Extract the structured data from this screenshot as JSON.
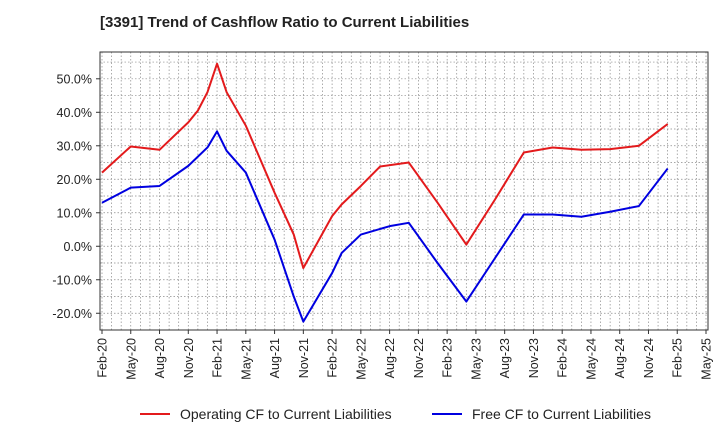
{
  "chart_data": {
    "type": "line",
    "title": "[3391]  Trend of Cashflow Ratio to Current Liabilities",
    "xlabel": "",
    "ylabel": "",
    "ylim": [
      -25,
      58
    ],
    "yticks": [
      "50.0%",
      "40.0%",
      "30.0%",
      "20.0%",
      "10.0%",
      "0.0%",
      "-10.0%",
      "-20.0%"
    ],
    "ytick_values": [
      50,
      40,
      30,
      20,
      10,
      0,
      -10,
      -20
    ],
    "xticks": [
      "Feb-20",
      "May-20",
      "Aug-20",
      "Nov-20",
      "Feb-21",
      "May-21",
      "Aug-21",
      "Nov-21",
      "Feb-22",
      "May-22",
      "Aug-22",
      "Nov-22",
      "Feb-23",
      "May-23",
      "Aug-23",
      "Nov-23",
      "Feb-24",
      "May-24",
      "Aug-24",
      "Nov-24",
      "Feb-25",
      "May-25"
    ],
    "grid": true,
    "legend_position": "bottom",
    "series": [
      {
        "name": "Operating CF to Current Liabilities",
        "color": "#e31a1c",
        "points": [
          [
            0,
            22
          ],
          [
            3,
            29.8
          ],
          [
            6,
            28.8
          ],
          [
            9,
            37
          ],
          [
            10,
            40.5
          ],
          [
            11,
            46
          ],
          [
            12,
            54.5
          ],
          [
            13,
            46
          ],
          [
            15,
            36
          ],
          [
            18,
            16
          ],
          [
            20,
            3.5
          ],
          [
            21,
            -6.5
          ],
          [
            24,
            9
          ],
          [
            25,
            12.5
          ],
          [
            27,
            18
          ],
          [
            29,
            23.8
          ],
          [
            32,
            25
          ],
          [
            35,
            13
          ],
          [
            38,
            0.5
          ],
          [
            41,
            14
          ],
          [
            44,
            28
          ],
          [
            47,
            29.5
          ],
          [
            50,
            28.8
          ],
          [
            53,
            29
          ],
          [
            56,
            30
          ],
          [
            59,
            36.5
          ]
        ]
      },
      {
        "name": "Free CF to Current Liabilities",
        "color": "#0000e0",
        "points": [
          [
            0,
            13
          ],
          [
            3,
            17.5
          ],
          [
            6,
            18
          ],
          [
            9,
            24
          ],
          [
            11,
            29.5
          ],
          [
            12,
            34.3
          ],
          [
            13,
            28.5
          ],
          [
            15,
            22
          ],
          [
            18,
            2
          ],
          [
            20,
            -15
          ],
          [
            21,
            -22.5
          ],
          [
            24,
            -8
          ],
          [
            25,
            -2
          ],
          [
            27,
            3.5
          ],
          [
            30,
            6
          ],
          [
            32,
            7
          ],
          [
            35,
            -5
          ],
          [
            38,
            -16.5
          ],
          [
            41,
            -3.5
          ],
          [
            44,
            9.5
          ],
          [
            47,
            9.5
          ],
          [
            50,
            8.8
          ],
          [
            53,
            10.3
          ],
          [
            56,
            12
          ],
          [
            59,
            23.2
          ]
        ]
      }
    ]
  }
}
